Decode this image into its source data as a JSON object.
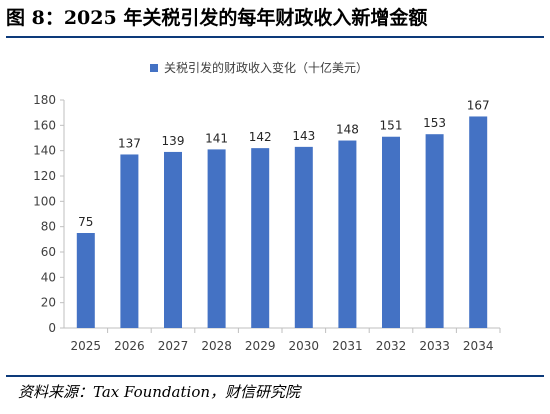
{
  "figure": {
    "title": "图 8：2025 年关税引发的每年财政收入新增金额",
    "source": "资料来源：Tax Foundation，财信研究院"
  },
  "colors": {
    "bar": "#4472c4",
    "rule": "#0d3a7a",
    "axis": "#bfbfbf",
    "text": "#404040"
  },
  "chart_data": {
    "type": "bar",
    "categories": [
      "2025",
      "2026",
      "2027",
      "2028",
      "2029",
      "2030",
      "2031",
      "2032",
      "2033",
      "2034"
    ],
    "series": [
      {
        "name": "关税引发的财政收入变化（十亿美元）",
        "values": [
          75,
          137,
          139,
          141,
          142,
          143,
          148,
          151,
          153,
          167
        ]
      }
    ],
    "ylim": [
      0,
      180
    ],
    "yticks": [
      0,
      20,
      40,
      60,
      80,
      100,
      120,
      140,
      160,
      180
    ],
    "legend_position": "top",
    "grid": false,
    "data_labels": true
  }
}
